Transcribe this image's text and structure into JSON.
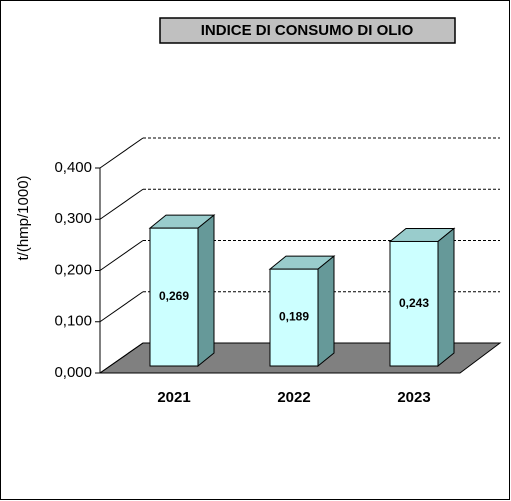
{
  "chart_data": {
    "type": "bar3d",
    "title": "INDICE DI CONSUMO DI OLIO",
    "y_label": "t/(hmp/1000)",
    "categories": [
      "2021",
      "2022",
      "2023"
    ],
    "values": [
      0.269,
      0.189,
      0.243
    ],
    "value_labels": [
      "0,269",
      "0,189",
      "0,243"
    ],
    "color": "#ccffff",
    "ylim": [
      0,
      0.4
    ],
    "yticks": [
      {
        "value": 0,
        "label": "0,000"
      },
      {
        "value": 0.1,
        "label": "0,100"
      },
      {
        "value": 0.2,
        "label": "0,200"
      },
      {
        "value": 0.3,
        "label": "0,300"
      },
      {
        "value": 0.4,
        "label": "0,400"
      }
    ],
    "grid": true
  }
}
